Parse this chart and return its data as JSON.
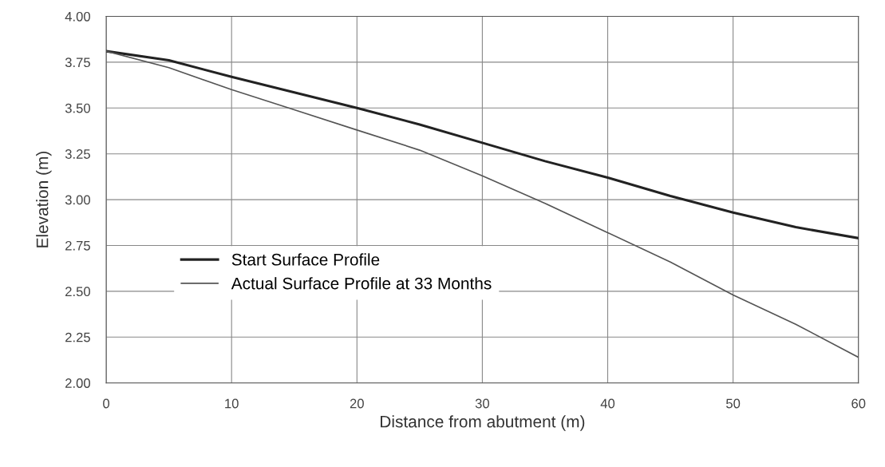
{
  "chart_data": {
    "type": "line",
    "xlabel": "Distance from abutment (m)",
    "ylabel": "Elevation (m)",
    "x": [
      0,
      5,
      10,
      15,
      20,
      25,
      30,
      35,
      40,
      45,
      50,
      55,
      60
    ],
    "series": [
      {
        "name": "Start Surface Profile",
        "color": "#222222",
        "values": [
          3.81,
          3.76,
          3.67,
          3.585,
          3.5,
          3.41,
          3.31,
          3.21,
          3.12,
          3.02,
          2.93,
          2.85,
          2.79
        ]
      },
      {
        "name": "Actual Surface Profile at 33 Months",
        "color": "#555555",
        "values": [
          3.81,
          3.72,
          3.6,
          3.49,
          3.38,
          3.27,
          3.13,
          2.98,
          2.82,
          2.66,
          2.48,
          2.32,
          2.14
        ]
      }
    ],
    "xlim": [
      0,
      60
    ],
    "xticks": [
      0,
      10,
      20,
      30,
      40,
      50,
      60
    ],
    "ylim": [
      2,
      4
    ],
    "yticks": [
      {
        "value": 2,
        "label": "2.00"
      },
      {
        "value": 2.25,
        "label": "2.25"
      },
      {
        "value": 2.5,
        "label": "2.50"
      },
      {
        "value": 2.75,
        "label": "2.75"
      },
      {
        "value": 3,
        "label": "3.00"
      },
      {
        "value": 3.25,
        "label": "3.25"
      },
      {
        "value": 3.5,
        "label": "3.50"
      },
      {
        "value": 3.75,
        "label": "3.75"
      },
      {
        "value": 4,
        "label": "4.00"
      }
    ],
    "grid": true,
    "legend": "left",
    "marker": "none",
    "line_style": "solid"
  }
}
